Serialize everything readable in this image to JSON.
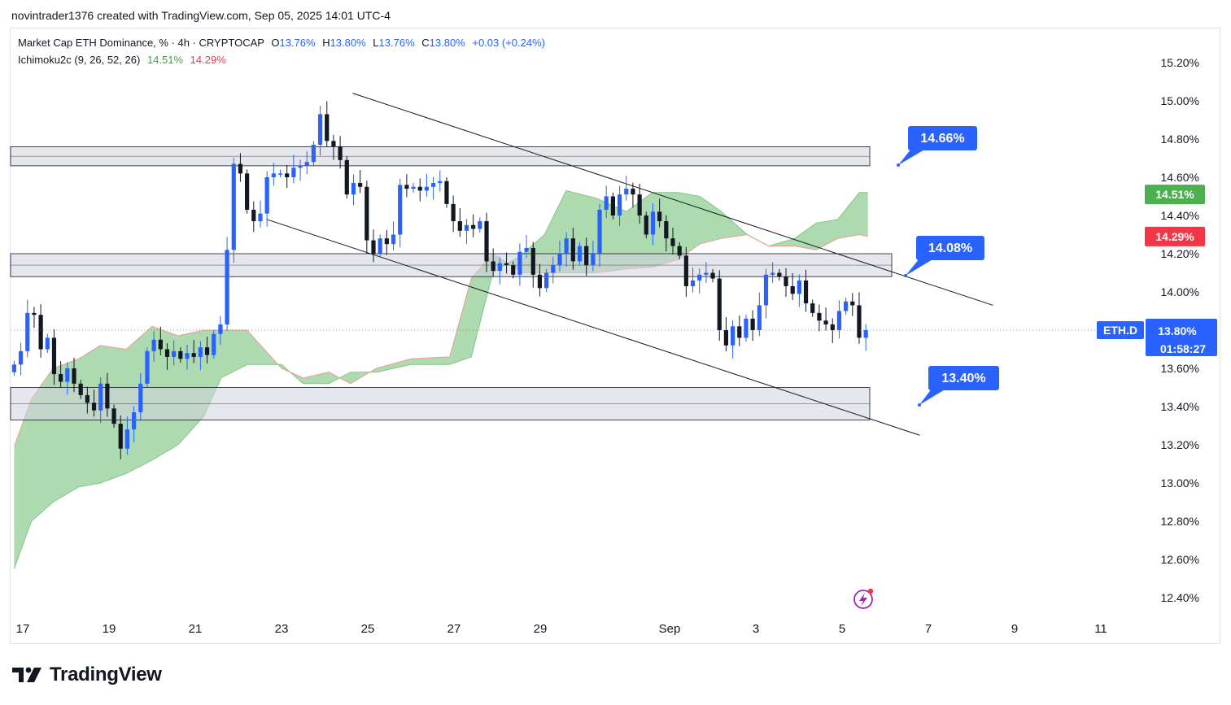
{
  "header": {
    "attribution": "novintrader1376 created with TradingView.com, Sep 05, 2025 14:01 UTC-4"
  },
  "legend": {
    "symbol": "Market Cap ETH Dominance, % · 4h · CRYPTOCAP",
    "o_label": "O",
    "o_value": "13.76%",
    "h_label": "H",
    "h_value": "13.80%",
    "l_label": "L",
    "l_value": "13.76%",
    "c_label": "C",
    "c_value": "13.80%",
    "change": "+0.03 (+0.24%)",
    "indicator": "Ichimoku2c (9, 26, 52, 26)",
    "ind_value1": "14.51%",
    "ind_value2": "14.29%"
  },
  "footer": {
    "brand": "TradingView"
  },
  "colors": {
    "up": "#2962ff",
    "down": "#131722",
    "cloud": "#a5d6a7",
    "cloud_edge": "#ef9a9a",
    "zone_fill": "#d1d4dc",
    "callout": "#2962ff",
    "tag_green": "#4caf50",
    "tag_red": "#f23645"
  },
  "chart_data": {
    "type": "candlestick",
    "title": "Market Cap ETH Dominance, % · 4h · CRYPTOCAP",
    "ylim": [
      12.3,
      15.3
    ],
    "y_ticks": [
      "15.20%",
      "15.00%",
      "14.80%",
      "14.60%",
      "14.40%",
      "14.20%",
      "14.00%",
      "13.80%",
      "13.60%",
      "13.40%",
      "13.20%",
      "13.00%",
      "12.80%",
      "12.60%",
      "12.40%"
    ],
    "y_tick_values": [
      15.2,
      15.0,
      14.8,
      14.6,
      14.4,
      14.2,
      14.0,
      13.8,
      13.6,
      13.4,
      13.2,
      13.0,
      12.8,
      12.6,
      12.4
    ],
    "x_ticks": [
      "17",
      "19",
      "21",
      "23",
      "25",
      "27",
      "29",
      "Sep",
      "3",
      "5",
      "7",
      "9",
      "11"
    ],
    "x_tick_days": [
      17,
      19,
      21,
      23,
      25,
      27,
      29,
      32,
      34,
      36,
      38,
      40,
      42
    ],
    "x_range_days": [
      16.8,
      43.5
    ],
    "candles_close": [
      13.62,
      13.69,
      13.89,
      13.88,
      13.7,
      13.76,
      13.57,
      13.53,
      13.6,
      13.52,
      13.46,
      13.42,
      13.38,
      13.52,
      13.39,
      13.31,
      13.18,
      13.28,
      13.37,
      13.52,
      13.69,
      13.75,
      13.7,
      13.66,
      13.69,
      13.65,
      13.68,
      13.66,
      13.71,
      13.67,
      13.78,
      13.83,
      14.22,
      14.67,
      14.62,
      14.43,
      14.37,
      14.41,
      14.6,
      14.62,
      14.62,
      14.6,
      14.65,
      14.66,
      14.68,
      14.77,
      14.93,
      14.79,
      14.76,
      14.69,
      14.51,
      14.57,
      14.55,
      14.27,
      14.2,
      14.28,
      14.25,
      14.3,
      14.56,
      14.54,
      14.55,
      14.53,
      14.55,
      14.57,
      14.58,
      14.46,
      14.37,
      14.32,
      14.35,
      14.33,
      14.37,
      14.16,
      14.11,
      14.15,
      14.14,
      14.09,
      14.21,
      14.23,
      14.09,
      14.02,
      14.1,
      14.14,
      14.2,
      14.28,
      14.16,
      14.24,
      14.14,
      14.2,
      14.43,
      14.5,
      14.4,
      14.51,
      14.54,
      14.51,
      14.4,
      14.3,
      14.42,
      14.37,
      14.28,
      14.24,
      14.19,
      14.03,
      14.06,
      14.09,
      14.1,
      14.07,
      13.8,
      13.72,
      13.82,
      13.76,
      13.86,
      13.8,
      13.93,
      14.09,
      14.1,
      14.08,
      14.03,
      13.99,
      14.06,
      13.94,
      13.89,
      13.85,
      13.83,
      13.8,
      13.9,
      13.95,
      13.93,
      13.76,
      13.8
    ],
    "ichimoku": {
      "conversion": "14.51%",
      "base": "14.29%"
    },
    "zones": [
      {
        "label": "zone-top",
        "low": 14.66,
        "high": 14.76
      },
      {
        "label": "zone-mid",
        "low": 14.08,
        "high": 14.2
      },
      {
        "label": "zone-low",
        "low": 13.33,
        "high": 13.5
      }
    ],
    "targets": [
      "14.66%",
      "14.08%",
      "13.40%"
    ],
    "symbol_tag": "ETH.D",
    "last_price": "13.80%",
    "countdown": "01:58:27",
    "tag_upper": "14.51%",
    "tag_lower": "14.29%"
  }
}
